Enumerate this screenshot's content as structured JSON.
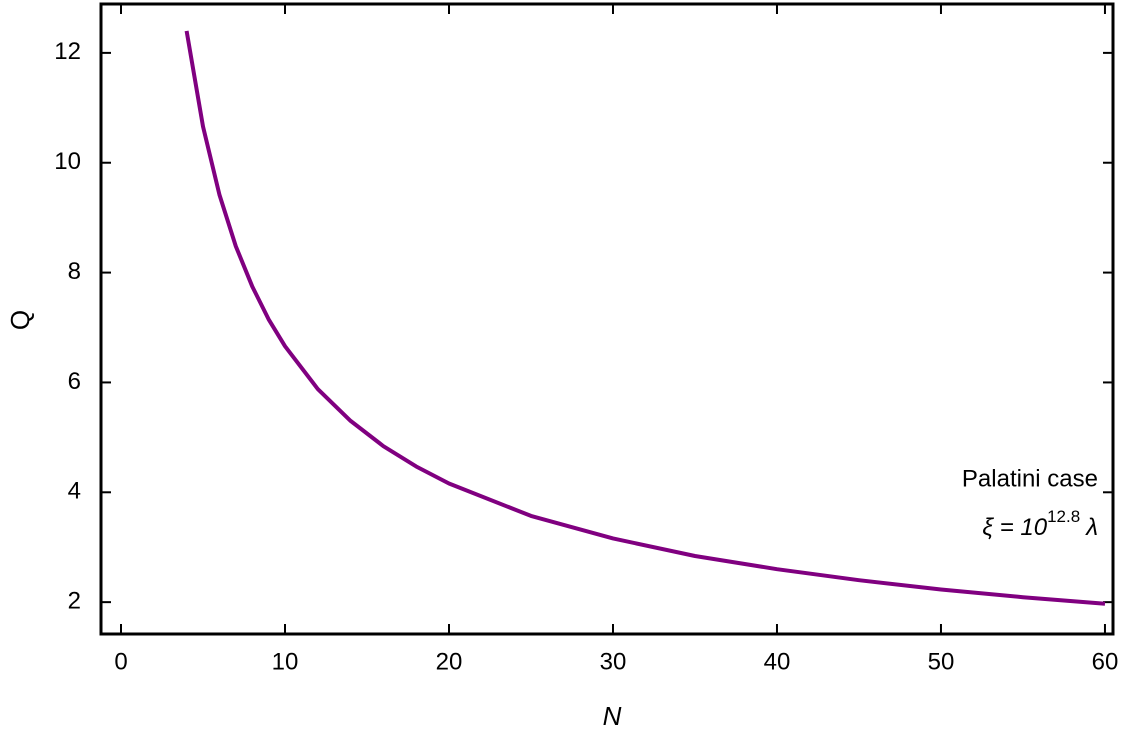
{
  "chart_data": {
    "type": "line",
    "x_label": "N",
    "y_label": "Q",
    "x": [
      4,
      5,
      6,
      7,
      8,
      9,
      10,
      12,
      14,
      16,
      18,
      20,
      25,
      30,
      35,
      40,
      45,
      50,
      55,
      60
    ],
    "series": [
      {
        "color": "#800080",
        "values": [
          12.4,
          10.66,
          9.42,
          8.48,
          7.75,
          7.15,
          6.66,
          5.88,
          5.3,
          4.84,
          4.47,
          4.16,
          3.57,
          3.16,
          2.84,
          2.6,
          2.4,
          2.23,
          2.09,
          1.97
        ]
      }
    ],
    "xlim": [
      -1.22,
      60.49
    ],
    "ylim": [
      1.42,
      12.89
    ],
    "xticks": [
      0,
      10,
      20,
      30,
      40,
      50,
      60
    ],
    "yticks": [
      2,
      4,
      6,
      8,
      10,
      12
    ],
    "annotations": [
      {
        "text": "Palatini case"
      },
      {
        "base": "ξ = 10",
        "superscript": "12.8",
        "suffix": "λ"
      }
    ]
  }
}
